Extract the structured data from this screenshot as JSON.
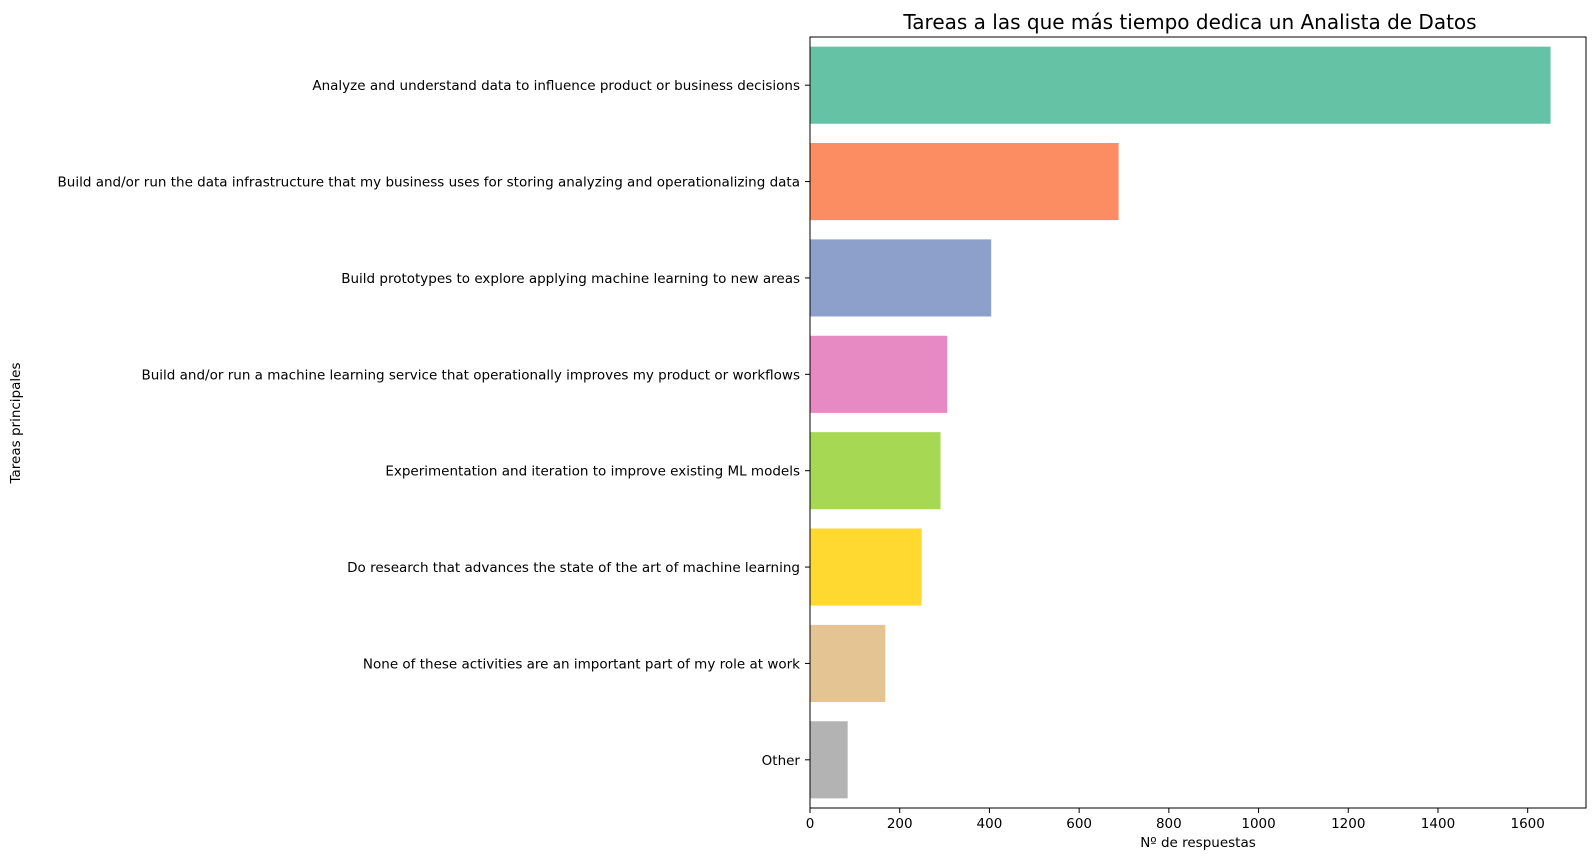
{
  "chart_data": {
    "type": "bar",
    "orientation": "horizontal",
    "title": "Tareas a las que más tiempo dedica un Analista de Datos",
    "xlabel": "Nº de respuestas",
    "ylabel": "Tareas principales",
    "xlim": [
      0,
      1730
    ],
    "xticks": [
      0,
      200,
      400,
      600,
      800,
      1000,
      1200,
      1400,
      1600
    ],
    "grid": false,
    "categories": [
      "Analyze and understand data to influence product or business decisions",
      "Build and/or run the data infrastructure that my business uses for storing analyzing and operationalizing data",
      "Build prototypes to explore applying machine learning to new areas",
      "Build and/or run a machine learning service that operationally improves my product or workflows",
      "Experimentation and iteration to improve existing ML models",
      "Do research that advances the state of the art of machine learning",
      "None of these activities are an important part of my role at work",
      "Other"
    ],
    "values": [
      1651,
      688,
      404,
      306,
      291,
      249,
      168,
      84
    ],
    "colors": [
      "#66c2a5",
      "#fc8d62",
      "#8da0cb",
      "#e78ac3",
      "#a6d854",
      "#ffd92f",
      "#e5c494",
      "#b3b3b3"
    ]
  }
}
